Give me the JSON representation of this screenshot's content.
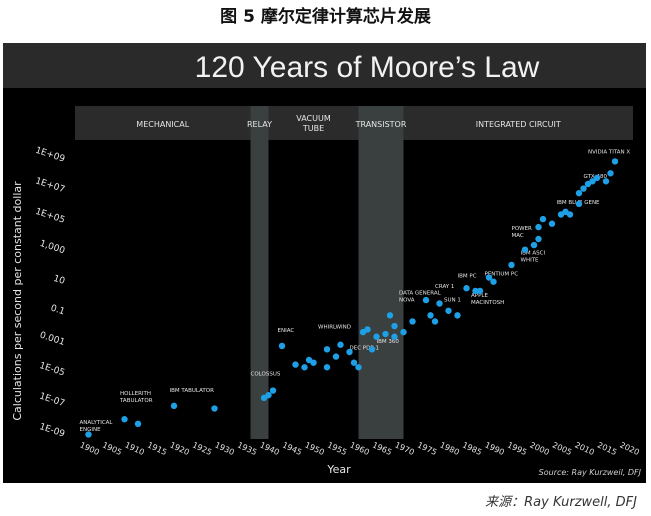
{
  "figure_caption": "图 5 摩尔定律计算芯片发展",
  "source_credit": "来源：Ray Kurzwell, DFJ",
  "colors": {
    "background": "#000000",
    "title_bar": "#2a2a2a",
    "era_header": "#2b2b2b",
    "era_band": "#3a3f3f",
    "point": "#1ea0e6",
    "text": "#e6e6e6"
  },
  "chart_data": {
    "type": "scatter",
    "title": "120 Years of Moore’s Law",
    "xlabel": "Year",
    "ylabel": "Calculations per second per constant dollar",
    "source_note": "Source: Ray Kurzweil, DFJ",
    "y_scale": "log",
    "xlim": [
      1897,
      2021
    ],
    "ylim": [
      1e-09,
      1000000000.0
    ],
    "x_ticks": [
      "1900",
      "1905",
      "1910",
      "1915",
      "1920",
      "1925",
      "1930",
      "1935",
      "1940",
      "1945",
      "1950",
      "1955",
      "1960",
      "1965",
      "1970",
      "1975",
      "1980",
      "1985",
      "1990",
      "1995",
      "2000",
      "2005",
      "2010",
      "2015",
      "2020"
    ],
    "y_ticks": [
      {
        "label": "1E+09",
        "value": 1000000000.0
      },
      {
        "label": "1E+07",
        "value": 10000000.0
      },
      {
        "label": "1E+05",
        "value": 100000.0
      },
      {
        "label": "1,000",
        "value": 1000.0
      },
      {
        "label": "10",
        "value": 10
      },
      {
        "label": "0.1",
        "value": 0.1
      },
      {
        "label": "0.001",
        "value": 0.001
      },
      {
        "label": "1E-05",
        "value": 1e-05
      },
      {
        "label": "1E-07",
        "value": 1e-07
      },
      {
        "label": "1E-09",
        "value": 1e-09
      }
    ],
    "eras": [
      {
        "label": "MECHANICAL",
        "start": 1897,
        "end": 1936,
        "shaded": false
      },
      {
        "label": "RELAY",
        "start": 1936,
        "end": 1940,
        "shaded": true
      },
      {
        "label": "VACUUM\nTUBE",
        "start": 1940,
        "end": 1960,
        "shaded": false
      },
      {
        "label": "TRANSISTOR",
        "start": 1960,
        "end": 1970,
        "shaded": true
      },
      {
        "label": "INTEGRATED CIRCUIT",
        "start": 1970,
        "end": 2021,
        "shaded": false
      }
    ],
    "points": [
      {
        "x": 1900,
        "y": 8e-10
      },
      {
        "x": 1908,
        "y": 8e-09
      },
      {
        "x": 1911,
        "y": 4e-09
      },
      {
        "x": 1919,
        "y": 6e-08
      },
      {
        "x": 1928,
        "y": 4e-08
      },
      {
        "x": 1939,
        "y": 2e-07
      },
      {
        "x": 1940,
        "y": 3e-07
      },
      {
        "x": 1941,
        "y": 6e-07
      },
      {
        "x": 1943,
        "y": 0.0005
      },
      {
        "x": 1946,
        "y": 3e-05
      },
      {
        "x": 1948,
        "y": 2e-05
      },
      {
        "x": 1949,
        "y": 6e-05
      },
      {
        "x": 1950,
        "y": 4e-05
      },
      {
        "x": 1953,
        "y": 0.0003
      },
      {
        "x": 1953,
        "y": 2e-05
      },
      {
        "x": 1955,
        "y": 0.0001
      },
      {
        "x": 1956,
        "y": 0.0006
      },
      {
        "x": 1958,
        "y": 0.0002
      },
      {
        "x": 1959,
        "y": 4e-05
      },
      {
        "x": 1960,
        "y": 2e-05
      },
      {
        "x": 1961,
        "y": 0.004
      },
      {
        "x": 1962,
        "y": 0.006
      },
      {
        "x": 1963,
        "y": 0.0003
      },
      {
        "x": 1964,
        "y": 0.002
      },
      {
        "x": 1966,
        "y": 0.003
      },
      {
        "x": 1967,
        "y": 0.05
      },
      {
        "x": 1968,
        "y": 0.01
      },
      {
        "x": 1968,
        "y": 0.002
      },
      {
        "x": 1970,
        "y": 0.004
      },
      {
        "x": 1972,
        "y": 0.02
      },
      {
        "x": 1975,
        "y": 0.5
      },
      {
        "x": 1976,
        "y": 0.05
      },
      {
        "x": 1977,
        "y": 0.02
      },
      {
        "x": 1978,
        "y": 0.3
      },
      {
        "x": 1980,
        "y": 0.1
      },
      {
        "x": 1982,
        "y": 0.05
      },
      {
        "x": 1984,
        "y": 3
      },
      {
        "x": 1986,
        "y": 2
      },
      {
        "x": 1987,
        "y": 2
      },
      {
        "x": 1989,
        "y": 15
      },
      {
        "x": 1990,
        "y": 8
      },
      {
        "x": 1994,
        "y": 100
      },
      {
        "x": 1997,
        "y": 1000
      },
      {
        "x": 1999,
        "y": 2000
      },
      {
        "x": 2000,
        "y": 5000
      },
      {
        "x": 2000,
        "y": 30000
      },
      {
        "x": 2001,
        "y": 100000.0
      },
      {
        "x": 2003,
        "y": 50000.0
      },
      {
        "x": 2005,
        "y": 200000.0
      },
      {
        "x": 2006,
        "y": 300000.0
      },
      {
        "x": 2007,
        "y": 200000.0
      },
      {
        "x": 2009,
        "y": 1000000.0
      },
      {
        "x": 2009,
        "y": 5000000.0
      },
      {
        "x": 2010,
        "y": 10000000.0
      },
      {
        "x": 2011,
        "y": 20000000.0
      },
      {
        "x": 2012,
        "y": 30000000.0
      },
      {
        "x": 2013,
        "y": 50000000.0
      },
      {
        "x": 2015,
        "y": 30000000.0
      },
      {
        "x": 2016,
        "y": 100000000.0
      },
      {
        "x": 2017,
        "y": 600000000.0
      }
    ],
    "annotations": [
      {
        "text": "ANALYTICAL\nENGINE",
        "x": 1898,
        "y": 4e-09
      },
      {
        "text": "HOLLERITH\nTABULATOR",
        "x": 1907,
        "y": 3e-07
      },
      {
        "text": "IBM TABULATOR",
        "x": 1918,
        "y": 5e-07
      },
      {
        "text": "ENIAC",
        "x": 1942,
        "y": 0.004
      },
      {
        "text": "COLOSSUS",
        "x": 1936,
        "y": 6e-06
      },
      {
        "text": "WHIRLWIND",
        "x": 1951,
        "y": 0.007
      },
      {
        "text": "DEC PDP-1",
        "x": 1958,
        "y": 0.0003
      },
      {
        "text": "IBM 360",
        "x": 1964,
        "y": 0.0008
      },
      {
        "text": "DATA GENERAL\nNOVA",
        "x": 1969,
        "y": 1.2
      },
      {
        "text": "CRAY 1",
        "x": 1977,
        "y": 3
      },
      {
        "text": "SUN 1",
        "x": 1979,
        "y": 0.4
      },
      {
        "text": "IBM PC",
        "x": 1982,
        "y": 15
      },
      {
        "text": "APPLE\nMACINTOSH",
        "x": 1985,
        "y": 0.8
      },
      {
        "text": "PENTIUM PC",
        "x": 1988,
        "y": 20
      },
      {
        "text": "POWER\nMAC",
        "x": 1994,
        "y": 20000.0
      },
      {
        "text": "IBM ASCI\nWHITE",
        "x": 1996,
        "y": 500
      },
      {
        "text": "IBM BLUE GENE",
        "x": 2004,
        "y": 1000000.0
      },
      {
        "text": "GTX 480",
        "x": 2010,
        "y": 50000000.0
      },
      {
        "text": "NVIDIA TITAN X",
        "x": 2011,
        "y": 2000000000.0
      }
    ]
  }
}
